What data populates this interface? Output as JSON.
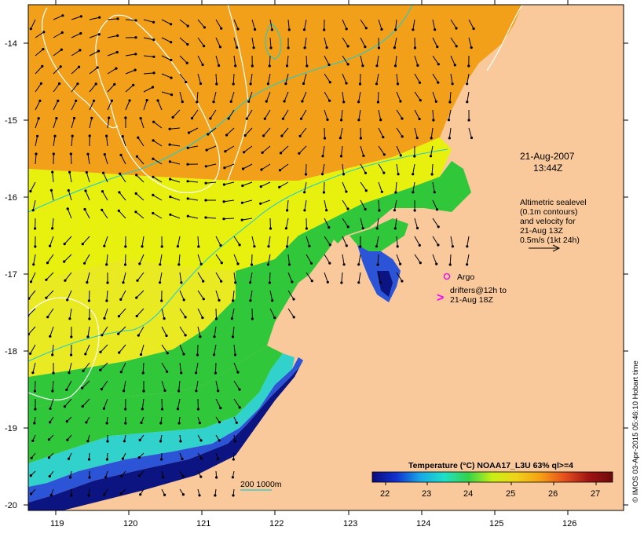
{
  "map": {
    "lon_ticks": [
      "119",
      "120",
      "121",
      "122",
      "123",
      "124",
      "125",
      "126"
    ],
    "lat_ticks": [
      "-14",
      "-15",
      "-16",
      "-17",
      "-18",
      "-19",
      "-20"
    ],
    "colors": {
      "land": "#f9c99b",
      "sst_orange": "#f2a019",
      "sst_yellow": "#e8f00e",
      "sst_green": "#30c83a",
      "sst_cyan": "#1ad3d0",
      "sst_blue": "#2b55d6",
      "sst_navy": "#0b1481",
      "contour_white": "#ffffff",
      "isobath_cyan": "#22cccc",
      "argo_magenta": "#dd22dd",
      "drifter_magenta": "#ff00ff"
    }
  },
  "annotations": {
    "date": "21-Aug-2007",
    "time": "13:44Z",
    "altimetry_lines": [
      "Altimetric sealevel",
      "(0.1m contours)",
      "and velocity for",
      "21-Aug 13Z",
      "0.5m/s (1kt 24h)"
    ],
    "argo_label": "Argo",
    "drifter_lines": [
      "drifters@12h to",
      "21-Aug 18Z"
    ],
    "drifter_symbol": ">",
    "isobath_label": "200  1000m"
  },
  "colorbar": {
    "title": "Temperature (°C) NOAA17_L3U 63% ql>=4",
    "ticks": [
      "22",
      "23",
      "24",
      "25",
      "26",
      "27"
    ],
    "gradient": [
      "#0a0a7a",
      "#1032d0",
      "#19a8e6",
      "#1ee0c8",
      "#36d24a",
      "#c8f014",
      "#f0d219",
      "#f5a014",
      "#e6501e",
      "#a01414",
      "#6e0a0a"
    ]
  },
  "credit": "© IMOS 03-Apr-2015 05:46:10 Hobart time"
}
